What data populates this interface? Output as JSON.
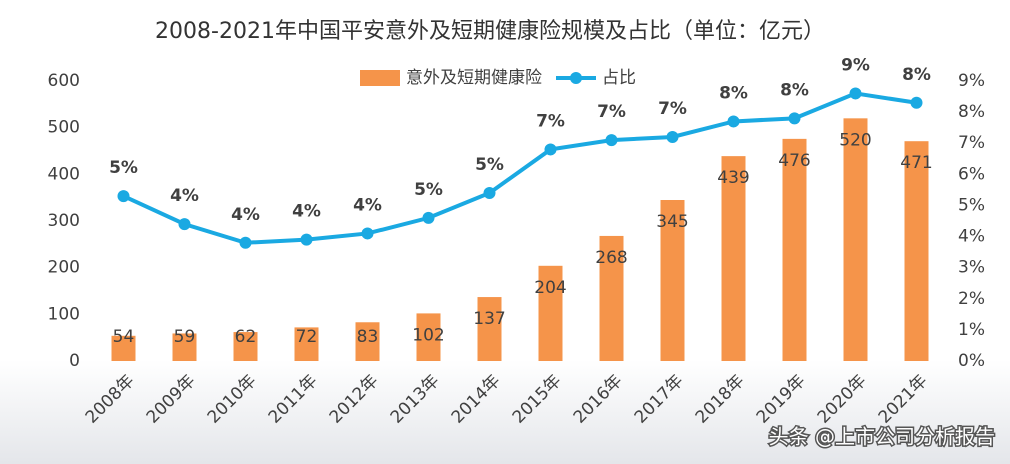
{
  "chart_data": {
    "type": "bar-line",
    "title": "2008-2021年中国平安意外及短期健康险规模及占比（单位：亿元）",
    "watermark": "头条 @上市公司分析报告",
    "categories": [
      "2008年",
      "2009年",
      "2010年",
      "2011年",
      "2012年",
      "2013年",
      "2014年",
      "2015年",
      "2016年",
      "2017年",
      "2018年",
      "2019年",
      "2020年",
      "2021年"
    ],
    "series": [
      {
        "name": "意外及短期健康险",
        "type": "bar",
        "color": "#f5944a",
        "values": [
          54,
          59,
          62,
          72,
          83,
          102,
          137,
          204,
          268,
          345,
          439,
          476,
          520,
          471
        ]
      },
      {
        "name": "占比",
        "type": "line",
        "axis": "y2",
        "color": "#1aa9e2",
        "values": [
          5.3,
          4.4,
          3.8,
          3.9,
          4.1,
          4.6,
          5.4,
          6.8,
          7.1,
          7.2,
          7.7,
          7.8,
          8.6,
          8.3
        ],
        "value_labels": [
          "5%",
          "4%",
          "4%",
          "4%",
          "4%",
          "5%",
          "5%",
          "7%",
          "7%",
          "7%",
          "8%",
          "8%",
          "9%",
          "8%"
        ]
      }
    ],
    "ylim": [
      0,
      600
    ],
    "yticks": [
      0,
      100,
      200,
      300,
      400,
      500,
      600
    ],
    "y2lim": [
      0,
      9
    ],
    "y2ticks": [
      {
        "value": 0,
        "label": "0%"
      },
      {
        "value": 1,
        "label": "1%"
      },
      {
        "value": 2,
        "label": "2%"
      },
      {
        "value": 3,
        "label": "3%"
      },
      {
        "value": 4,
        "label": "4%"
      },
      {
        "value": 5,
        "label": "5%"
      },
      {
        "value": 6,
        "label": "6%"
      },
      {
        "value": 7,
        "label": "7%"
      },
      {
        "value": 8,
        "label": "8%"
      },
      {
        "value": 9,
        "label": "9%"
      }
    ],
    "grid": false,
    "legend": "top"
  }
}
